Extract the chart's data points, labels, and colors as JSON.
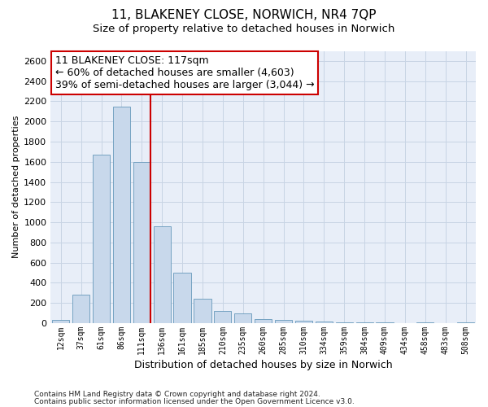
{
  "title1": "11, BLAKENEY CLOSE, NORWICH, NR4 7QP",
  "title2": "Size of property relative to detached houses in Norwich",
  "xlabel": "Distribution of detached houses by size in Norwich",
  "ylabel": "Number of detached properties",
  "footnote1": "Contains HM Land Registry data © Crown copyright and database right 2024.",
  "footnote2": "Contains public sector information licensed under the Open Government Licence v3.0.",
  "bar_color": "#c8d8eb",
  "bar_edge_color": "#6699bb",
  "highlight_line_color": "#cc0000",
  "annotation_box_color": "#cc0000",
  "annotation_line1": "11 BLAKENEY CLOSE: 117sqm",
  "annotation_line2": "← 60% of detached houses are smaller (4,603)",
  "annotation_line3": "39% of semi-detached houses are larger (3,044) →",
  "property_bin_index": 4,
  "categories": [
    "12sqm",
    "37sqm",
    "61sqm",
    "86sqm",
    "111sqm",
    "136sqm",
    "161sqm",
    "185sqm",
    "210sqm",
    "235sqm",
    "260sqm",
    "285sqm",
    "310sqm",
    "334sqm",
    "359sqm",
    "384sqm",
    "409sqm",
    "434sqm",
    "458sqm",
    "483sqm",
    "508sqm"
  ],
  "values": [
    30,
    280,
    1670,
    2150,
    1600,
    960,
    500,
    245,
    120,
    95,
    40,
    35,
    25,
    15,
    8,
    5,
    5,
    3,
    5,
    3,
    5
  ],
  "ylim": [
    0,
    2700
  ],
  "yticks": [
    0,
    200,
    400,
    600,
    800,
    1000,
    1200,
    1400,
    1600,
    1800,
    2000,
    2200,
    2400,
    2600
  ],
  "grid_color": "#c8d4e4",
  "background_color": "#e8eef8",
  "title1_fontsize": 11,
  "title2_fontsize": 9.5,
  "ylabel_fontsize": 8,
  "xlabel_fontsize": 9,
  "tick_fontsize": 8,
  "xtick_fontsize": 7,
  "annot_fontsize": 9
}
